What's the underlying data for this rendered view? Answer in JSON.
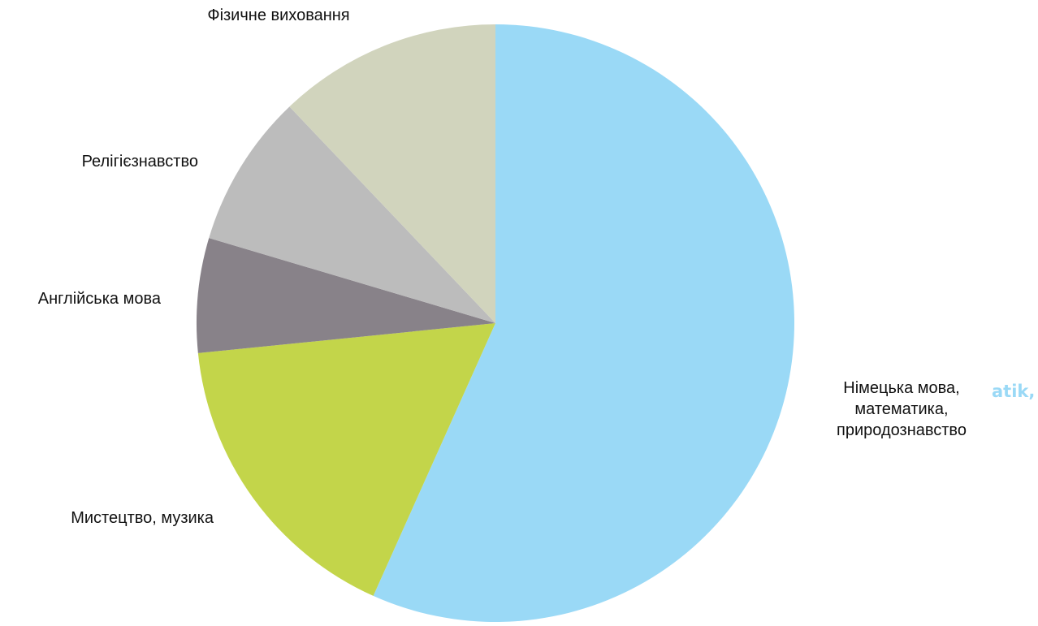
{
  "chart_data": {
    "type": "pie",
    "title": "",
    "slices": [
      {
        "label": "Німецька мова, математика, природознавство",
        "lines": [
          "Німецька мова,",
          "математика,",
          "природознавство"
        ],
        "value": 56.7,
        "color": "#9ad9f6"
      },
      {
        "label": "Мистецтво, музика",
        "lines": [
          "Мистецтво, музика"
        ],
        "value": 16.7,
        "color": "#c3d54a"
      },
      {
        "label": "Англійська мова",
        "lines": [
          "Англійська мова"
        ],
        "value": 6.2,
        "color": "#888289"
      },
      {
        "label": "Релігієзнавство",
        "lines": [
          "Релігієзнавство"
        ],
        "value": 8.3,
        "color": "#bcbcbc"
      },
      {
        "label": "Фізичне виховання",
        "lines": [
          "Фізичне виховання"
        ],
        "value": 12.1,
        "color": "#d1d4bd"
      }
    ],
    "start": "12 o'clock",
    "direction": "clockwise",
    "legend": "none",
    "label_placement": "outside"
  },
  "residual_text": {
    "german_fragment": "atik,"
  }
}
